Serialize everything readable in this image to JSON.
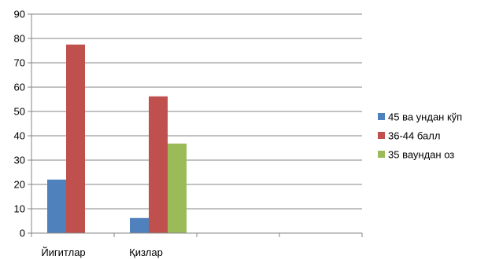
{
  "chart_data": {
    "type": "bar",
    "title": "",
    "xlabel": "",
    "ylabel": "",
    "ylim": [
      0,
      90
    ],
    "yticks": [
      0,
      10,
      20,
      30,
      40,
      50,
      60,
      70,
      80,
      90
    ],
    "grid": true,
    "legend_position": "right",
    "categories": [
      "Йигитлар",
      "Қизлар",
      "",
      ""
    ],
    "series": [
      {
        "name": "45 ва ундан кўп",
        "color": "#4F81BD",
        "values": [
          22,
          6.2,
          null,
          null
        ]
      },
      {
        "name": "36-44 балл",
        "color": "#C0504D",
        "values": [
          77.5,
          56.2,
          null,
          null
        ]
      },
      {
        "name": "35 ваундан оз",
        "color": "#9BBB59",
        "values": [
          null,
          36.8,
          null,
          null
        ]
      }
    ]
  }
}
